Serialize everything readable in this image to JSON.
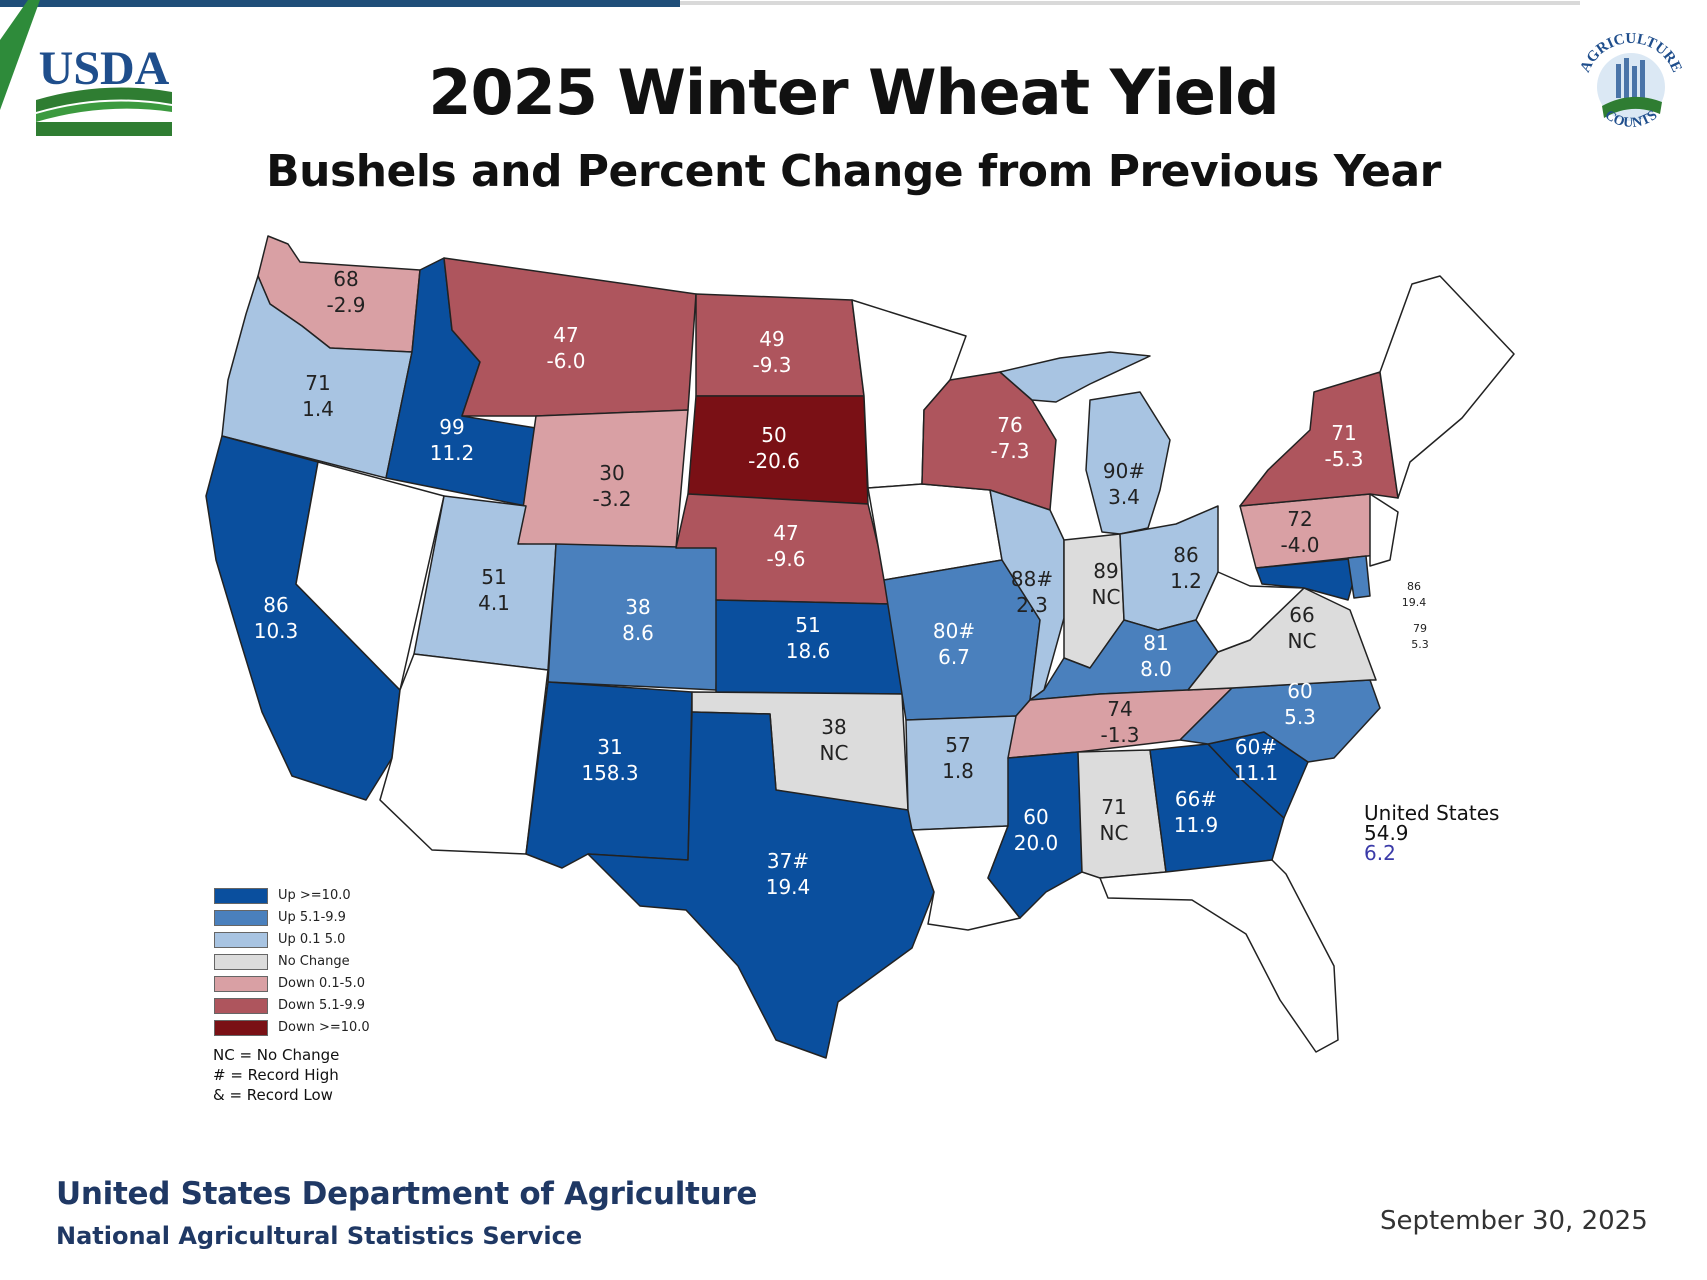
{
  "header": {
    "title": "2025 Winter Wheat Yield",
    "subtitle": "Bushels and Percent Change from Previous Year",
    "left_logo_text": "USDA",
    "right_logo_text": "AGRICULTURE COUNTS"
  },
  "colors": {
    "up_10": "#0a4f9e",
    "up_5": "#4a80bd",
    "up_0": "#a8c4e2",
    "no_change": "#dcdcdc",
    "down_0": "#d9a0a4",
    "down_5": "#ae555d",
    "down_10": "#7a1015",
    "no_data": "#ffffff"
  },
  "legend": {
    "items": [
      {
        "label": "Up >=10.0",
        "color": "#0a4f9e"
      },
      {
        "label": "Up 5.1-9.9",
        "color": "#4a80bd"
      },
      {
        "label": "Up 0.1 5.0",
        "color": "#a8c4e2"
      },
      {
        "label": "No Change",
        "color": "#dcdcdc"
      },
      {
        "label": "Down 0.1-5.0",
        "color": "#d9a0a4"
      },
      {
        "label": "Down 5.1-9.9",
        "color": "#ae555d"
      },
      {
        "label": "Down >=10.0",
        "color": "#7a1015"
      }
    ],
    "notes": [
      "NC = No Change",
      "# = Record High",
      "& = Record Low"
    ]
  },
  "states": [
    {
      "id": "WA",
      "yield": "68",
      "change": "-2.9"
    },
    {
      "id": "OR",
      "yield": "71",
      "change": "1.4"
    },
    {
      "id": "CA",
      "yield": "86",
      "change": "10.3"
    },
    {
      "id": "ID",
      "yield": "99",
      "change": "11.2"
    },
    {
      "id": "MT",
      "yield": "47",
      "change": "-6.0"
    },
    {
      "id": "WY",
      "yield": "30",
      "change": "-3.2"
    },
    {
      "id": "UT",
      "yield": "51",
      "change": "4.1"
    },
    {
      "id": "CO",
      "yield": "38",
      "change": "8.6"
    },
    {
      "id": "NM",
      "yield": "31",
      "change": "158.3"
    },
    {
      "id": "ND",
      "yield": "49",
      "change": "-9.3"
    },
    {
      "id": "SD",
      "yield": "50",
      "change": "-20.6"
    },
    {
      "id": "NE",
      "yield": "47",
      "change": "-9.6"
    },
    {
      "id": "KS",
      "yield": "51",
      "change": "18.6"
    },
    {
      "id": "OK",
      "yield": "38",
      "change": "NC"
    },
    {
      "id": "TX",
      "yield": "37#",
      "change": "19.4"
    },
    {
      "id": "MO",
      "yield": "80#",
      "change": "6.7"
    },
    {
      "id": "AR",
      "yield": "57",
      "change": "1.8"
    },
    {
      "id": "WI",
      "yield": "76",
      "change": "-7.3"
    },
    {
      "id": "MI",
      "yield": "90#",
      "change": "3.4"
    },
    {
      "id": "IL",
      "yield": "88#",
      "change": "2.3"
    },
    {
      "id": "IN",
      "yield": "89",
      "change": "NC"
    },
    {
      "id": "OH",
      "yield": "86",
      "change": "1.2"
    },
    {
      "id": "KY",
      "yield": "81",
      "change": "8.0"
    },
    {
      "id": "TN",
      "yield": "74",
      "change": "-1.3"
    },
    {
      "id": "MS",
      "yield": "60",
      "change": "20.0"
    },
    {
      "id": "AL",
      "yield": "71",
      "change": "NC"
    },
    {
      "id": "GA",
      "yield": "66#",
      "change": "11.9"
    },
    {
      "id": "SC",
      "yield": "60#",
      "change": "11.1"
    },
    {
      "id": "NC",
      "yield": "60",
      "change": "5.3"
    },
    {
      "id": "VA",
      "yield": "66",
      "change": "NC"
    },
    {
      "id": "PA",
      "yield": "72",
      "change": "-4.0"
    },
    {
      "id": "NY",
      "yield": "71",
      "change": "-5.3"
    },
    {
      "id": "MD",
      "yield": "86",
      "change": "19.4"
    },
    {
      "id": "DE",
      "yield": "79",
      "change": "5.3"
    }
  ],
  "united_states": {
    "label": "United States",
    "yield": "54.9",
    "change": "6.2"
  },
  "footer": {
    "agency": "United States Department of Agriculture",
    "service": "National Agricultural Statistics Service",
    "date": "September 30, 2025"
  }
}
